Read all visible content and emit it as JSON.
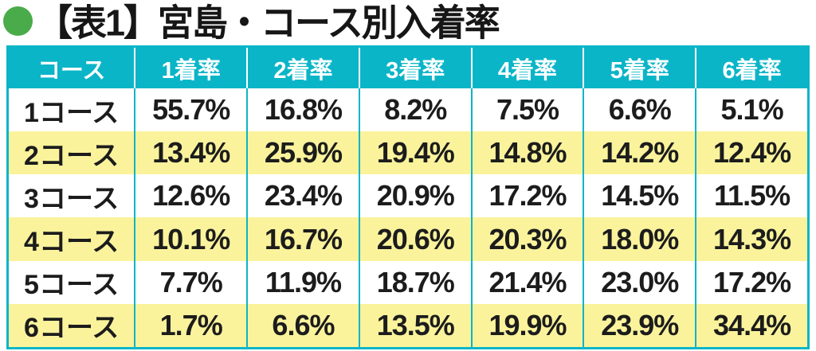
{
  "title": {
    "text": "【表1】宮島・コース別入着率"
  },
  "colors": {
    "cyan": "#0bb5c8",
    "yellow": "#faf39c",
    "green": "#4aab4a",
    "header_text": "#ffffff",
    "body_text": "#1c1c1c"
  },
  "chart_data": {
    "type": "table",
    "title": "【表1】宮島・コース別入着率",
    "columns": [
      "コース",
      "1着率",
      "2着率",
      "3着率",
      "4着率",
      "5着率",
      "6着率"
    ],
    "rows": [
      {
        "label": "1コース",
        "values": [
          "55.7%",
          "16.8%",
          "8.2%",
          "7.5%",
          "6.6%",
          "5.1%"
        ],
        "stripe": "white"
      },
      {
        "label": "2コース",
        "values": [
          "13.4%",
          "25.9%",
          "19.4%",
          "14.8%",
          "14.2%",
          "12.4%"
        ],
        "stripe": "yellow"
      },
      {
        "label": "3コース",
        "values": [
          "12.6%",
          "23.4%",
          "20.9%",
          "17.2%",
          "14.5%",
          "11.5%"
        ],
        "stripe": "white"
      },
      {
        "label": "4コース",
        "values": [
          "10.1%",
          "16.7%",
          "20.6%",
          "20.3%",
          "18.0%",
          "14.3%"
        ],
        "stripe": "yellow"
      },
      {
        "label": "5コース",
        "values": [
          "7.7%",
          "11.9%",
          "18.7%",
          "21.4%",
          "23.0%",
          "17.2%"
        ],
        "stripe": "white"
      },
      {
        "label": "6コース",
        "values": [
          "1.7%",
          "6.6%",
          "13.5%",
          "19.9%",
          "23.9%",
          "34.4%"
        ],
        "stripe": "yellow"
      }
    ],
    "layout_hints": {
      "header_background": "cyan",
      "row_striping": "alternating white/yellow",
      "values_unit": "percent"
    }
  }
}
